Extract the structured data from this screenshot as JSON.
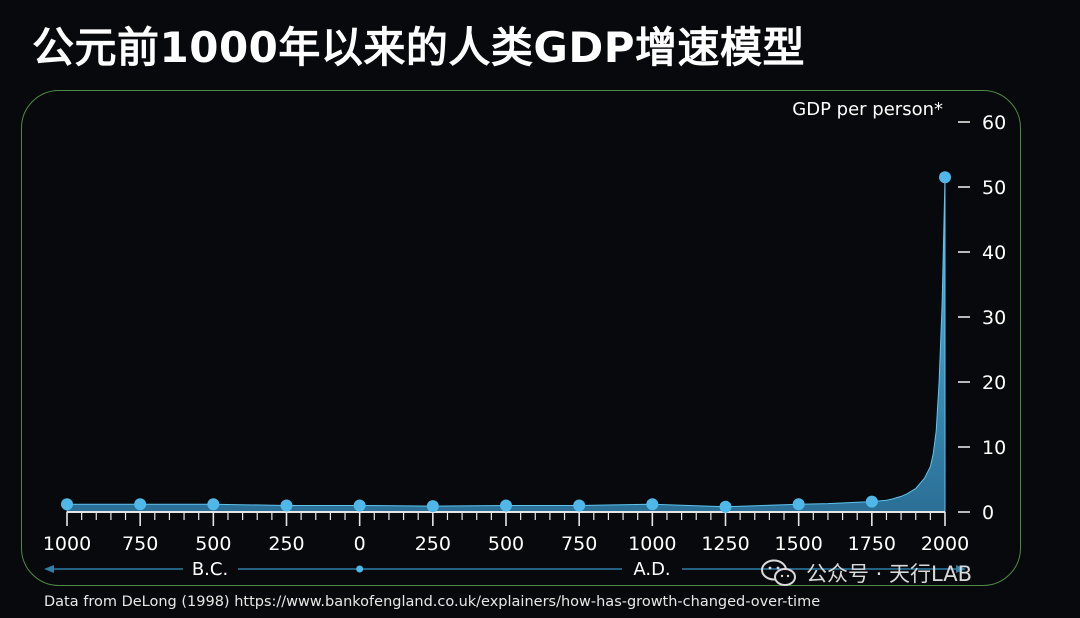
{
  "chart_data": {
    "type": "area",
    "title": "公元前1000年以来的人类GDP增速模型",
    "ylabel": "GDP per person*",
    "ylim": [
      0,
      60
    ],
    "yticks": [
      0,
      10,
      20,
      30,
      40,
      50,
      60
    ],
    "x_tick_labels": [
      "1000",
      "750",
      "500",
      "250",
      "0",
      "250",
      "500",
      "750",
      "1000",
      "1250",
      "1500",
      "1750",
      "2000"
    ],
    "x_tick_years": [
      -1000,
      -750,
      -500,
      -250,
      0,
      250,
      500,
      750,
      1000,
      1250,
      1500,
      1750,
      2000
    ],
    "era_labels": {
      "bc": "B.C.",
      "ad": "A.D."
    },
    "marker_points": {
      "x": [
        -1000,
        -750,
        -500,
        -250,
        0,
        250,
        500,
        750,
        1000,
        1250,
        1500,
        1750,
        2000
      ],
      "y": [
        1.2,
        1.2,
        1.2,
        1.0,
        1.0,
        0.9,
        1.0,
        1.0,
        1.2,
        0.8,
        1.2,
        1.6,
        51.5
      ]
    },
    "curve": {
      "x": [
        -1000,
        -750,
        -500,
        -250,
        0,
        250,
        500,
        750,
        1000,
        1250,
        1500,
        1600,
        1700,
        1750,
        1800,
        1820,
        1850,
        1870,
        1900,
        1913,
        1930,
        1950,
        1960,
        1970,
        1980,
        1990,
        2000
      ],
      "y": [
        1.2,
        1.2,
        1.2,
        1.0,
        1.0,
        0.9,
        1.0,
        1.0,
        1.2,
        0.8,
        1.2,
        1.3,
        1.5,
        1.6,
        1.8,
        2.0,
        2.4,
        2.8,
        3.6,
        4.3,
        5.2,
        7.0,
        9.0,
        12.5,
        20.0,
        32.0,
        51.5
      ]
    },
    "colors": {
      "marker": "#4fb8e8",
      "area": "#3aa7d6",
      "axis": "#e6e6e6",
      "frame": "#4f8b45"
    }
  },
  "footer": "Data from DeLong (1998) https://www.bankofengland.co.uk/explainers/how-has-growth-changed-over-time",
  "watermark": "公众号 · 天行LAB"
}
